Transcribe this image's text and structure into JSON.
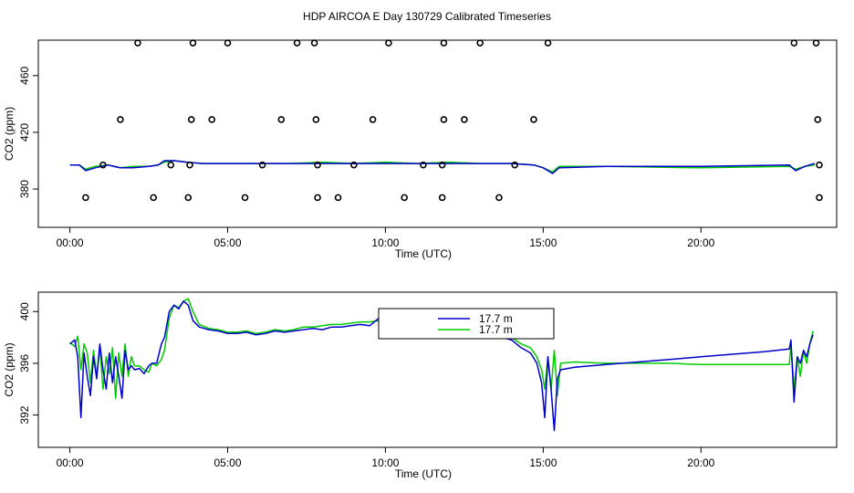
{
  "page": {
    "title": "HDP AIRCOA E  Day 130729  Calibrated Timeseries"
  },
  "colors": {
    "series_blue": "#0000cc",
    "series_green": "#00cc00",
    "axis": "#000000",
    "background": "#ffffff"
  },
  "chart_data": [
    {
      "type": "line",
      "title": "",
      "xlabel": "Time (UTC)",
      "ylabel": "CO2 (ppm)",
      "xlim": [
        -1.0,
        24.3
      ],
      "ylim": [
        353,
        485
      ],
      "x_ticks": [
        0,
        5,
        10,
        15,
        20
      ],
      "x_tick_labels": [
        "00:00",
        "05:00",
        "10:00",
        "15:00",
        "20:00"
      ],
      "y_ticks": [
        380,
        420,
        460
      ],
      "y_tick_labels": [
        "380",
        "420",
        "460"
      ],
      "grid": false,
      "series": [
        {
          "color": "green",
          "x": [
            0,
            0.3,
            0.5,
            0.8,
            1.2,
            1.6,
            2.0,
            2.5,
            2.8,
            3.0,
            3.3,
            3.7,
            4.2,
            5.0,
            6.0,
            7.0,
            8.0,
            9.0,
            10.0,
            11.0,
            12.0,
            13.0,
            14.0,
            14.7,
            15.0,
            15.3,
            15.5,
            17.0,
            20.0,
            22.8,
            23.0,
            23.3,
            23.6
          ],
          "y": [
            397,
            397,
            394,
            396,
            397,
            395,
            396,
            396,
            397,
            399,
            400,
            399,
            398,
            398,
            398,
            398,
            399,
            398,
            399,
            398,
            399,
            398,
            398,
            397,
            395,
            392,
            396,
            396,
            395,
            396,
            394,
            396,
            397
          ]
        },
        {
          "color": "blue",
          "x": [
            0,
            0.3,
            0.5,
            0.8,
            1.2,
            1.6,
            2.0,
            2.5,
            2.8,
            3.0,
            3.3,
            3.7,
            4.2,
            5.0,
            6.0,
            7.0,
            8.0,
            9.0,
            10.0,
            11.0,
            12.0,
            13.0,
            14.0,
            14.7,
            15.0,
            15.3,
            15.5,
            17.0,
            20.0,
            22.8,
            23.0,
            23.3,
            23.6
          ],
          "y": [
            397,
            397,
            393,
            395,
            397,
            395,
            395,
            396,
            397,
            400,
            400,
            399,
            398,
            398,
            398,
            398,
            398,
            398,
            398,
            398,
            398,
            398,
            398,
            397,
            395,
            391,
            395,
            396,
            396,
            397,
            393,
            396,
            398
          ]
        },
        {
          "type": "scatter",
          "marker": "open-circle",
          "x": [
            0.5,
            2.65,
            3.75,
            5.55,
            7.85,
            8.5,
            10.6,
            11.8,
            13.6,
            23.75,
            1.05,
            3.2,
            3.8,
            6.1,
            7.85,
            9.0,
            11.2,
            11.8,
            14.1,
            23.75,
            1.6,
            3.85,
            4.5,
            6.7,
            7.8,
            9.6,
            11.85,
            12.5,
            14.7,
            23.7,
            2.15,
            3.9,
            5.0,
            7.2,
            7.75,
            10.1,
            11.85,
            13.0,
            15.15,
            22.95,
            23.65
          ],
          "y": [
            374,
            374,
            374,
            374,
            374,
            374,
            374,
            374,
            374,
            374,
            397,
            397,
            397,
            397,
            397,
            397,
            397,
            397,
            397,
            397,
            429,
            429,
            429,
            429,
            429,
            429,
            429,
            429,
            429,
            429,
            483,
            483,
            483,
            483,
            483,
            483,
            483,
            483,
            483,
            483,
            483
          ]
        }
      ]
    },
    {
      "type": "line",
      "title": "",
      "xlabel": "Time (UTC)",
      "ylabel": "CO2 (ppm)",
      "xlim": [
        -1.0,
        24.3
      ],
      "ylim": [
        389.5,
        401.5
      ],
      "x_ticks": [
        0,
        5,
        10,
        15,
        20
      ],
      "x_tick_labels": [
        "00:00",
        "05:00",
        "10:00",
        "15:00",
        "20:00"
      ],
      "y_ticks": [
        392,
        396,
        400
      ],
      "y_tick_labels": [
        "392",
        "396",
        "400"
      ],
      "grid": false,
      "legend": {
        "position": "top-center",
        "entries": [
          {
            "label": "17.7 m",
            "color": "blue"
          },
          {
            "label": "17.7 m",
            "color": "green"
          }
        ]
      },
      "series": [
        {
          "color": "green",
          "x": [
            0,
            0.15,
            0.25,
            0.35,
            0.45,
            0.55,
            0.65,
            0.75,
            0.85,
            0.95,
            1.05,
            1.15,
            1.25,
            1.35,
            1.45,
            1.55,
            1.65,
            1.75,
            1.85,
            1.95,
            2.05,
            2.2,
            2.35,
            2.5,
            2.6,
            2.75,
            2.9,
            3.0,
            3.15,
            3.3,
            3.45,
            3.6,
            3.75,
            3.9,
            4.1,
            4.4,
            4.7,
            5.0,
            5.3,
            5.6,
            5.9,
            6.2,
            6.5,
            6.8,
            7.1,
            7.4,
            7.7,
            8.0,
            8.3,
            8.6,
            8.9,
            9.2,
            9.5,
            9.8,
            10.1,
            10.4,
            10.7,
            11.0,
            11.3,
            11.6,
            11.75,
            11.9,
            12.2,
            12.5,
            12.8,
            13.1,
            13.4,
            13.7,
            14.0,
            14.3,
            14.6,
            14.8,
            14.95,
            15.05,
            15.15,
            15.25,
            15.35,
            15.45,
            15.55,
            16.0,
            17.0,
            18.0,
            19.0,
            20.0,
            21.0,
            22.0,
            22.8,
            22.85,
            22.95,
            23.05,
            23.15,
            23.25,
            23.35,
            23.45,
            23.55
          ],
          "y": [
            397.6,
            397.3,
            398.1,
            395.5,
            397.5,
            396.8,
            394.5,
            397.0,
            395.0,
            397.3,
            394.0,
            396.5,
            395.2,
            397.2,
            393.3,
            396.8,
            395.0,
            397.5,
            395.0,
            396.5,
            395.8,
            395.8,
            395.5,
            395.3,
            396.0,
            395.8,
            396.3,
            397.0,
            399.5,
            400.5,
            400.3,
            400.8,
            401.0,
            400.0,
            399.0,
            398.7,
            398.6,
            398.4,
            398.4,
            398.5,
            398.3,
            398.4,
            398.6,
            398.5,
            398.6,
            398.8,
            398.8,
            398.9,
            399.0,
            399.0,
            399.1,
            399.2,
            399.2,
            399.3,
            399.2,
            399.0,
            399.1,
            399.0,
            399.2,
            399.3,
            400.0,
            399.0,
            399.0,
            398.8,
            398.8,
            398.6,
            398.5,
            398.2,
            398.0,
            397.5,
            397.2,
            396.5,
            395.5,
            394.0,
            396.5,
            394.0,
            397.0,
            393.5,
            396.0,
            396.1,
            396.0,
            396.0,
            396.0,
            395.9,
            395.9,
            395.9,
            395.9,
            397.5,
            394.0,
            396.5,
            395.0,
            397.0,
            396.0,
            397.5,
            398.5
          ]
        },
        {
          "color": "blue",
          "x": [
            0,
            0.15,
            0.25,
            0.35,
            0.45,
            0.55,
            0.65,
            0.75,
            0.85,
            0.95,
            1.05,
            1.15,
            1.25,
            1.35,
            1.45,
            1.55,
            1.65,
            1.75,
            1.85,
            1.95,
            2.05,
            2.2,
            2.35,
            2.5,
            2.6,
            2.75,
            2.9,
            3.0,
            3.15,
            3.3,
            3.45,
            3.6,
            3.75,
            3.9,
            4.1,
            4.4,
            4.7,
            5.0,
            5.3,
            5.6,
            5.9,
            6.2,
            6.5,
            6.8,
            7.1,
            7.4,
            7.7,
            8.0,
            8.3,
            8.6,
            8.9,
            9.2,
            9.5,
            9.8,
            10.1,
            10.4,
            10.7,
            11.0,
            11.3,
            11.6,
            11.75,
            11.9,
            12.2,
            12.5,
            12.8,
            13.1,
            13.4,
            13.7,
            14.0,
            14.3,
            14.6,
            14.8,
            14.95,
            15.05,
            15.15,
            15.25,
            15.35,
            15.45,
            15.55,
            16.0,
            17.0,
            18.0,
            19.0,
            20.0,
            21.0,
            22.0,
            22.8,
            22.85,
            22.95,
            23.05,
            23.15,
            23.25,
            23.35,
            23.45,
            23.55
          ],
          "y": [
            397.5,
            397.8,
            396.5,
            391.8,
            396.8,
            395.0,
            393.5,
            396.5,
            394.8,
            397.5,
            395.5,
            394.0,
            396.8,
            394.5,
            396.5,
            395.0,
            393.3,
            397.0,
            395.5,
            395.8,
            395.5,
            395.6,
            395.2,
            395.8,
            396.0,
            396.0,
            397.5,
            398.0,
            400.0,
            400.5,
            400.2,
            400.8,
            400.5,
            399.3,
            398.8,
            398.6,
            398.5,
            398.3,
            398.3,
            398.4,
            398.2,
            398.3,
            398.5,
            398.4,
            398.5,
            398.6,
            398.7,
            398.6,
            398.8,
            398.8,
            398.9,
            399.0,
            398.9,
            399.5,
            398.8,
            398.8,
            398.7,
            398.6,
            398.8,
            398.9,
            399.3,
            398.6,
            398.7,
            398.5,
            398.6,
            398.4,
            398.3,
            398.0,
            397.8,
            397.2,
            396.8,
            396.0,
            394.5,
            391.8,
            396.5,
            394.0,
            390.8,
            394.8,
            395.5,
            395.7,
            395.9,
            396.1,
            396.3,
            396.5,
            396.7,
            396.9,
            397.1,
            397.8,
            393.0,
            396.5,
            396.0,
            397.0,
            396.5,
            397.5,
            398.2
          ]
        }
      ]
    }
  ]
}
